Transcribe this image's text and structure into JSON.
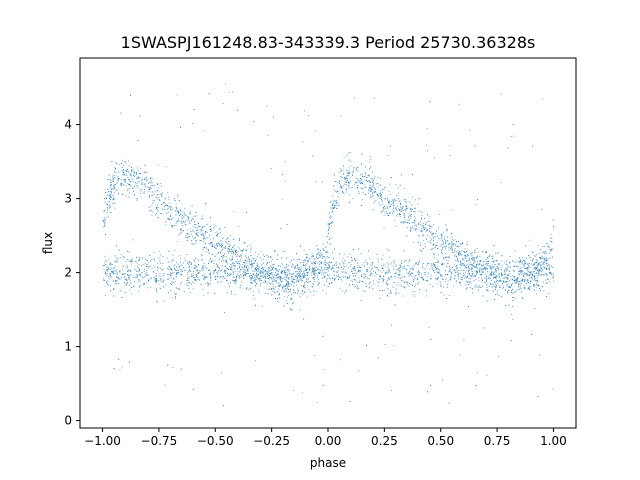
{
  "chart_data": {
    "type": "scatter",
    "title": "1SWASPJ161248.83-343339.3 Period 25730.36328s",
    "xlabel": "phase",
    "ylabel": "flux",
    "xlim": [
      -1.1,
      1.1
    ],
    "ylim": [
      -0.1,
      4.9
    ],
    "x_ticks": [
      -1.0,
      -0.75,
      -0.5,
      -0.25,
      0.0,
      0.25,
      0.5,
      0.75,
      1.0
    ],
    "x_tick_labels": [
      "−1.00",
      "−0.75",
      "−0.50",
      "−0.25",
      "0.00",
      "0.25",
      "0.50",
      "0.75",
      "1.00"
    ],
    "y_ticks": [
      0,
      1,
      2,
      3,
      4
    ],
    "y_tick_labels": [
      "0",
      "1",
      "2",
      "3",
      "4"
    ],
    "grid": false,
    "marker_color": "#1f77b4",
    "series": [
      {
        "points_note": "dense phase-folded light curve; representative points",
        "x": [
          -1.0,
          -0.98,
          -0.95,
          -0.92,
          -0.9,
          -0.87,
          -0.85,
          -0.82,
          -0.8,
          -0.78,
          -0.75,
          -0.72,
          -0.7,
          -0.67,
          -0.65,
          -0.62,
          -0.6,
          -0.57,
          -0.55,
          -0.52,
          -0.5,
          -0.47,
          -0.45,
          -0.42,
          -0.4,
          -0.37,
          -0.35,
          -0.32,
          -0.3,
          -0.27,
          -0.25,
          -0.22,
          -0.2,
          -0.17,
          -0.15,
          -0.12,
          -0.1,
          -0.07,
          -0.05,
          -0.02,
          0.0,
          0.02,
          0.05,
          0.08,
          0.1,
          0.13,
          0.15,
          0.18,
          0.2,
          0.23,
          0.25,
          0.28,
          0.3,
          0.33,
          0.35,
          0.38,
          0.4,
          0.43,
          0.45,
          0.48,
          0.5,
          0.53,
          0.55,
          0.58,
          0.6,
          0.63,
          0.65,
          0.68,
          0.7,
          0.73,
          0.75,
          0.78,
          0.8,
          0.83,
          0.85,
          0.88,
          0.9,
          0.93,
          0.95,
          0.98,
          1.0
        ],
        "y_upper": [
          2.6,
          3.0,
          3.2,
          3.25,
          3.3,
          3.3,
          3.25,
          3.2,
          3.15,
          3.05,
          3.0,
          2.9,
          2.85,
          2.8,
          2.75,
          2.65,
          2.6,
          2.55,
          2.5,
          2.45,
          2.4,
          2.35,
          2.3,
          2.25,
          2.2,
          2.15,
          2.1,
          2.05,
          2.0,
          1.95,
          1.95,
          1.9,
          1.85,
          1.85,
          1.9,
          1.95,
          2.0,
          2.05,
          2.1,
          2.2,
          2.5,
          2.9,
          3.2,
          3.3,
          3.3,
          3.25,
          3.25,
          3.2,
          3.1,
          3.05,
          3.0,
          2.95,
          2.9,
          2.85,
          2.8,
          2.7,
          2.65,
          2.6,
          2.5,
          2.45,
          2.4,
          2.35,
          2.3,
          2.25,
          2.2,
          2.15,
          2.1,
          2.05,
          2.0,
          1.95,
          1.95,
          1.9,
          1.85,
          1.85,
          1.9,
          1.95,
          2.0,
          2.05,
          2.1,
          2.2,
          2.6
        ],
        "y_lower_mean": 2.0
      }
    ]
  }
}
